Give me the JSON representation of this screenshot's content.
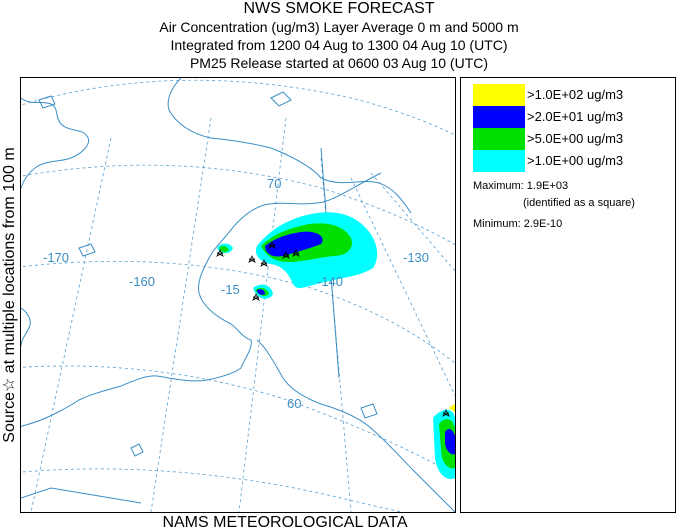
{
  "header": {
    "title": "NWS SMOKE FORECAST",
    "line2": "Air Concentration (ug/m3) Layer Average    0 m and  5000 m",
    "line3": "Integrated from 1200 04 Aug to 1300 04 Aug 10 (UTC)",
    "line4": "PM25 Release started at 0600 03 Aug 10 (UTC)"
  },
  "side_label": "Source☆   at multiple locations   from   100 m",
  "bottom_label": "NAMS METEOROLOGICAL DATA",
  "legend": {
    "items": [
      {
        "label": ">1.0E+02 ug/m3",
        "color": "#ffff00"
      },
      {
        "label": ">2.0E+01 ug/m3",
        "color": "#0000ff"
      },
      {
        "label": ">5.0E+00 ug/m3",
        "color": "#00e000"
      },
      {
        "label": ">1.0E+00 ug/m3",
        "color": "#00ffff"
      }
    ],
    "maximum": "Maximum: 1.9E+03",
    "maximum_note": "(identified as a square)",
    "minimum": "Minimum: 2.9E-10"
  },
  "map": {
    "graticule_labels": {
      "lat70": "70",
      "lat60": "60",
      "lon170": "-170",
      "lon160": "-160",
      "lon150": "-15",
      "lon140": "-140",
      "lon130": "-130"
    },
    "colors": {
      "coast": "#3b8fc6",
      "grid": "#5a9fd0",
      "low": "#00ffff",
      "mid": "#00e000",
      "high": "#0000ff"
    }
  }
}
